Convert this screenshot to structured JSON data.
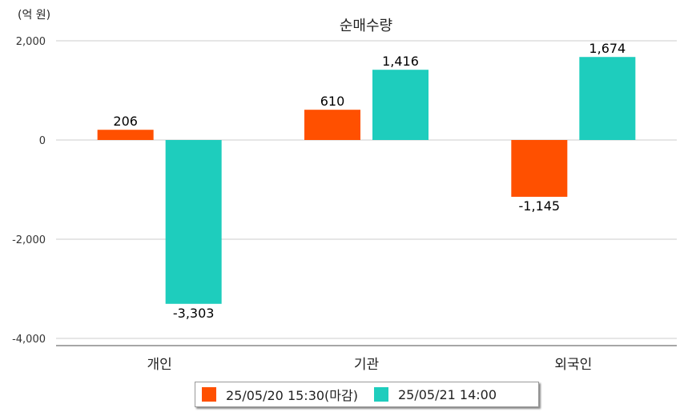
{
  "chart_data": {
    "type": "bar",
    "title": "순매수량",
    "unit_label": "(억 원)",
    "categories": [
      "개인",
      "기관",
      "외국인"
    ],
    "series": [
      {
        "name": "25/05/20 15:30(마감)",
        "values": [
          206,
          610,
          -1145
        ],
        "labels": [
          "206",
          "610",
          "-1,145"
        ],
        "color": "#ff5000"
      },
      {
        "name": "25/05/21 14:00",
        "values": [
          -3303,
          1416,
          1674
        ],
        "labels": [
          "-3,303",
          "1,416",
          "1,674"
        ],
        "color": "#1ecdbd"
      }
    ],
    "ylim": [
      -4000,
      2000
    ],
    "yticks": [
      -4000,
      -2000,
      0,
      2000
    ],
    "ytick_labels": [
      "-4,000",
      "-2,000",
      "0",
      "2,000"
    ],
    "grid": true,
    "legend_position": "bottom"
  }
}
